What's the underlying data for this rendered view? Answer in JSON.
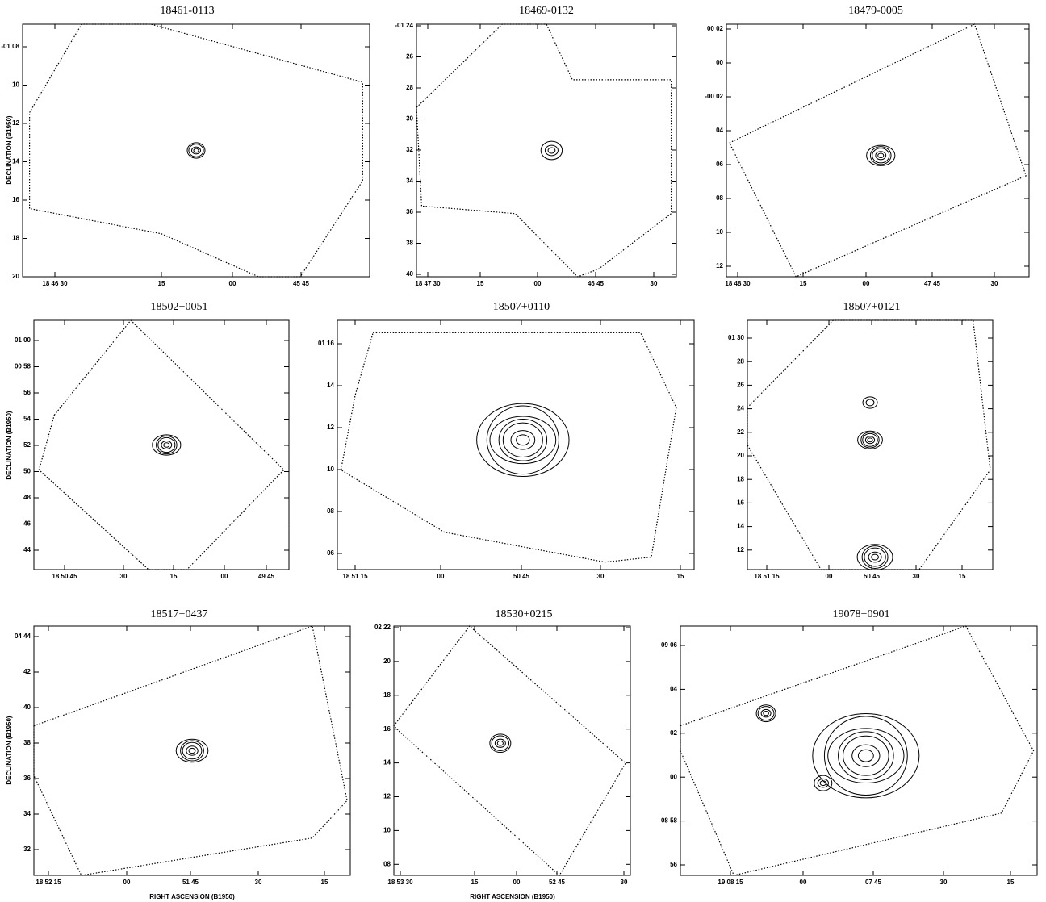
{
  "panels": [
    {
      "title": "18461-0113",
      "y_ticks": [
        "-01 08",
        "10",
        "12",
        "14",
        "16",
        "18",
        "20"
      ],
      "x_ticks": [
        "18 46 30",
        "15",
        "00",
        "45 45"
      ]
    },
    {
      "title": "18469-0132",
      "y_ticks": [
        "-01 24",
        "26",
        "28",
        "30",
        "32",
        "34",
        "36",
        "38",
        "40"
      ],
      "x_ticks": [
        "18 47 30",
        "15",
        "00",
        "46 45",
        "30"
      ]
    },
    {
      "title": "18479-0005",
      "y_ticks": [
        "00 02",
        "00",
        "-00 02",
        "04",
        "06",
        "08",
        "10",
        "12"
      ],
      "x_ticks": [
        "18 48 30",
        "15",
        "00",
        "47 45",
        "30"
      ]
    },
    {
      "title": "18502+0051",
      "y_ticks": [
        "01 00",
        "00 58",
        "56",
        "54",
        "52",
        "50",
        "48",
        "46",
        "44"
      ],
      "x_ticks": [
        "18 50 45",
        "30",
        "15",
        "00",
        "49 45"
      ]
    },
    {
      "title": "18507+0110",
      "y_ticks": [
        "01 16",
        "14",
        "12",
        "10",
        "08",
        "06"
      ],
      "x_ticks": [
        "18 51 15",
        "00",
        "50 45",
        "30",
        "15"
      ]
    },
    {
      "title": "18507+0121",
      "y_ticks": [
        "01 30",
        "28",
        "26",
        "24",
        "22",
        "20",
        "18",
        "16",
        "14",
        "12"
      ],
      "x_ticks": [
        "18 51 15",
        "00",
        "50 45",
        "30",
        "15"
      ]
    },
    {
      "title": "18517+0437",
      "y_ticks": [
        "04 44",
        "42",
        "40",
        "38",
        "36",
        "34",
        "32"
      ],
      "x_ticks": [
        "18 52 15",
        "00",
        "51 45",
        "30",
        "15"
      ]
    },
    {
      "title": "18530+0215",
      "y_ticks": [
        "02 22",
        "20",
        "18",
        "16",
        "14",
        "12",
        "10",
        "08"
      ],
      "x_ticks": [
        "18 53 30",
        "15",
        "00",
        "52 45",
        "30"
      ]
    },
    {
      "title": "19078+0901",
      "y_ticks": [
        "09 06",
        "04",
        "02",
        "00",
        "08 58",
        "56"
      ],
      "x_ticks": [
        "19 08 15",
        "00",
        "07 45",
        "30",
        "15"
      ]
    }
  ],
  "axis_labels": {
    "declination": "DECLINATION (B1950)",
    "right_ascension": "RIGHT ASCENSION (B1950)"
  }
}
